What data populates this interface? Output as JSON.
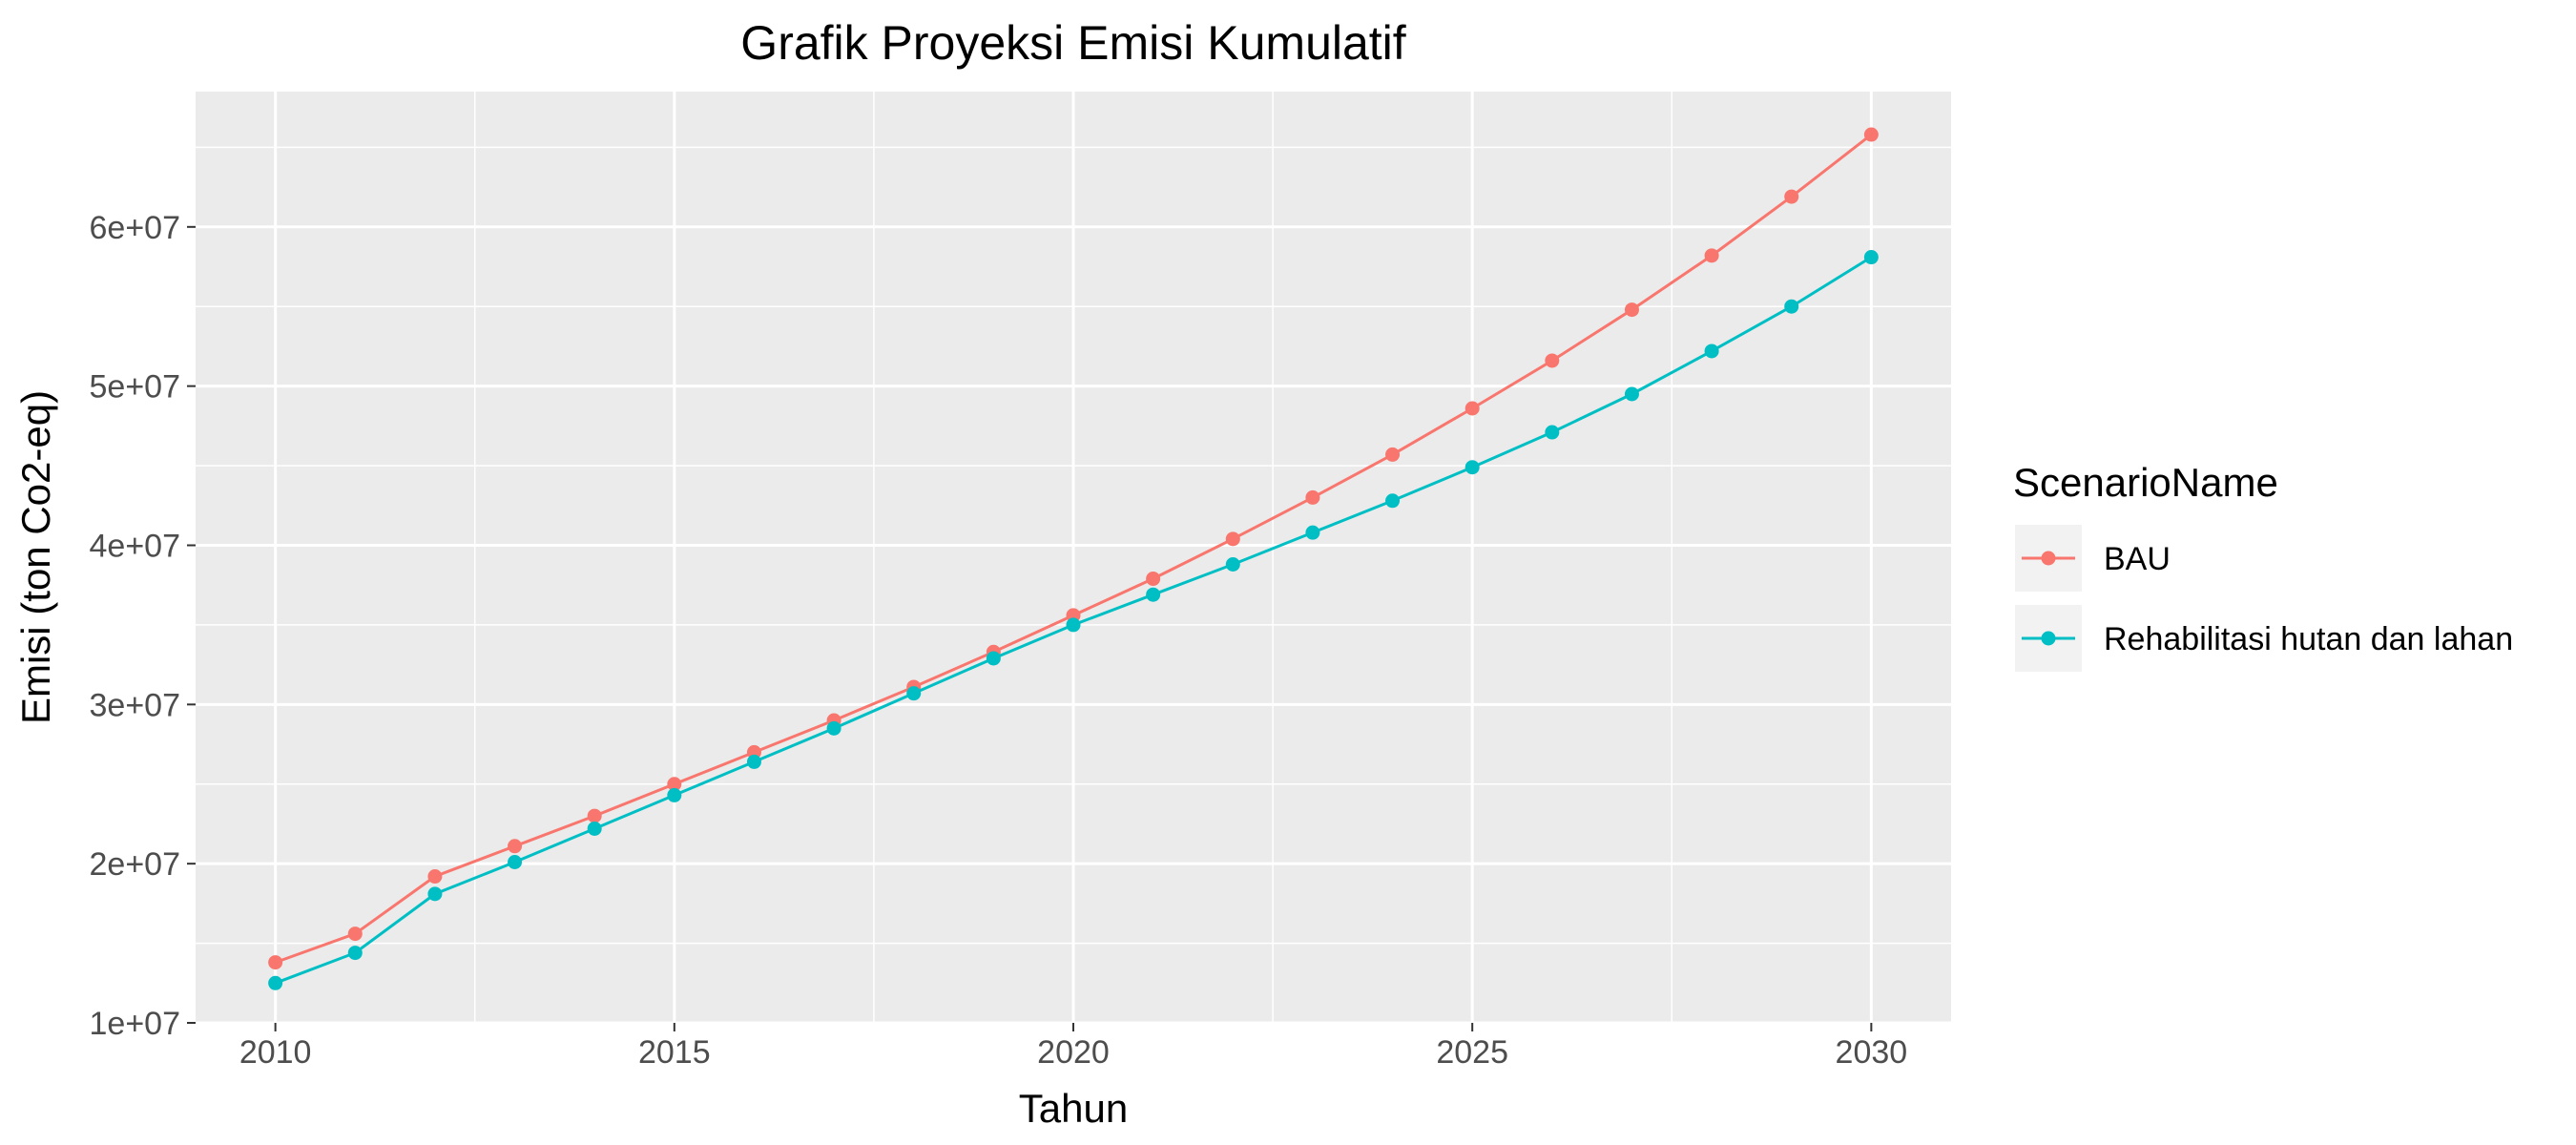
{
  "chart_data": {
    "type": "line",
    "title": "Grafik Proyeksi Emisi Kumulatif",
    "xlabel": "Tahun",
    "ylabel": "Emisi (ton Co2-eq)",
    "x": [
      2010,
      2011,
      2012,
      2013,
      2014,
      2015,
      2016,
      2017,
      2018,
      2019,
      2020,
      2021,
      2022,
      2023,
      2024,
      2025,
      2026,
      2027,
      2028,
      2029,
      2030
    ],
    "xlim": [
      2009.0,
      2031.0
    ],
    "ylim": [
      10000000,
      68500000
    ],
    "x_ticks": [
      2010,
      2015,
      2020,
      2025,
      2030
    ],
    "x_tick_labels": [
      "2010",
      "2015",
      "2020",
      "2025",
      "2030"
    ],
    "y_ticks": [
      10000000,
      20000000,
      30000000,
      40000000,
      50000000,
      60000000
    ],
    "y_tick_labels": [
      "1e+07",
      "2e+07",
      "3e+07",
      "4e+07",
      "5e+07",
      "6e+07"
    ],
    "grid": true,
    "legend": {
      "title": "ScenarioName",
      "position": "right"
    },
    "series": [
      {
        "name": "BAU",
        "color": "#F8766D",
        "values": [
          13800000,
          15600000,
          19200000,
          21100000,
          23000000,
          25000000,
          27000000,
          29000000,
          31100000,
          33300000,
          35600000,
          37900000,
          40400000,
          43000000,
          45700000,
          48600000,
          51600000,
          54800000,
          58200000,
          61900000,
          65800000
        ]
      },
      {
        "name": "Rehabilitasi hutan dan lahan",
        "color": "#00BFC4",
        "values": [
          12500000,
          14400000,
          18100000,
          20100000,
          22200000,
          24300000,
          26400000,
          28500000,
          30700000,
          32900000,
          35000000,
          36900000,
          38800000,
          40800000,
          42800000,
          44900000,
          47100000,
          49500000,
          52200000,
          55000000,
          58100000
        ]
      }
    ]
  }
}
